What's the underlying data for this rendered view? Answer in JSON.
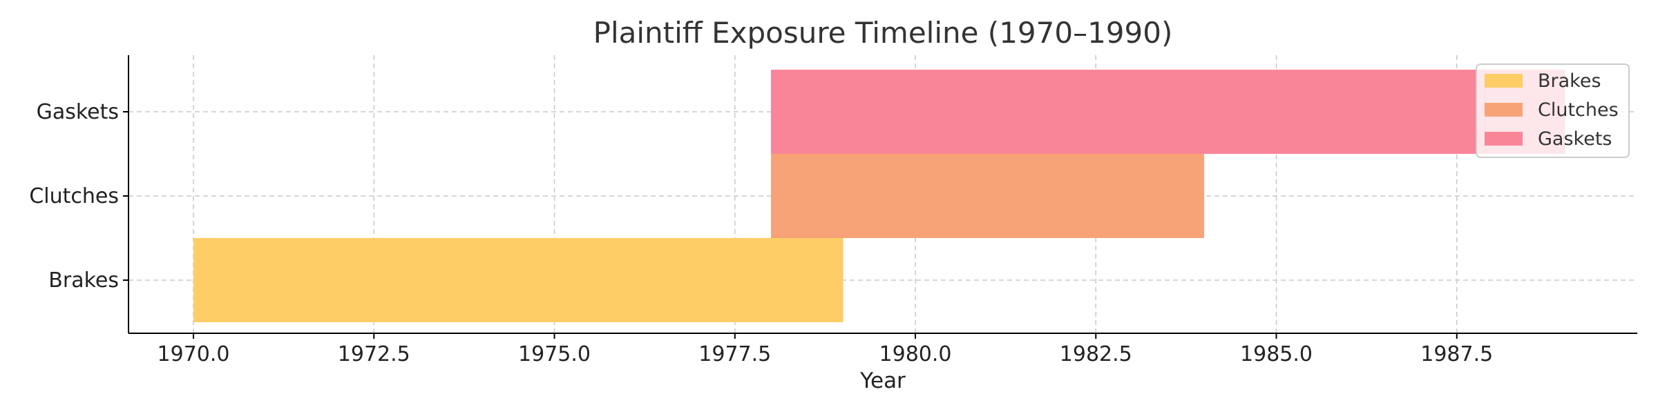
{
  "chart_data": {
    "type": "bar",
    "orientation": "horizontal",
    "title": "Plaintiff Exposure Timeline (1970–1990)",
    "xlabel": "Year",
    "ylabel": "",
    "xlim": [
      1969.1,
      1990.0
    ],
    "xticks": [
      1970.0,
      1972.5,
      1975.0,
      1977.5,
      1980.0,
      1982.5,
      1985.0,
      1987.5
    ],
    "xtick_labels": [
      "1970.0",
      "1972.5",
      "1975.0",
      "1977.5",
      "1980.0",
      "1982.5",
      "1985.0",
      "1987.5"
    ],
    "categories": [
      "Brakes",
      "Clutches",
      "Gaskets"
    ],
    "series": [
      {
        "name": "Brakes",
        "category": "Brakes",
        "start": 1970,
        "end": 1979,
        "color": "#ffcd66"
      },
      {
        "name": "Clutches",
        "category": "Clutches",
        "start": 1978,
        "end": 1984,
        "color": "#f7a377"
      },
      {
        "name": "Gaskets",
        "category": "Gaskets",
        "start": 1978,
        "end": 1989,
        "color": "#f98599"
      }
    ],
    "grid": true,
    "legend_position": "top-right"
  }
}
